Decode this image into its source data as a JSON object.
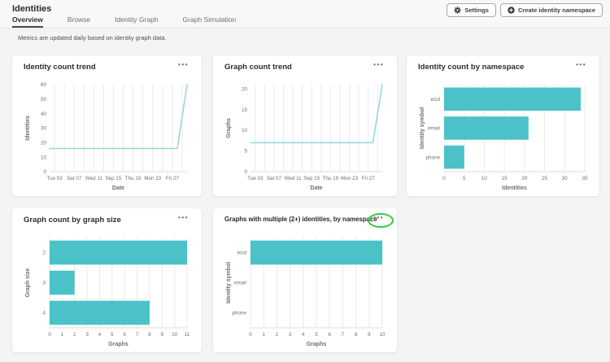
{
  "page": {
    "title": "Identities",
    "notice": "Metrics are updated daily based on identity graph data."
  },
  "header": {
    "settings_label": "Settings",
    "create_label": "Create identity namespace"
  },
  "tabs": [
    {
      "label": "Overview",
      "active": true
    },
    {
      "label": "Browse",
      "active": false
    },
    {
      "label": "Identity Graph",
      "active": false
    },
    {
      "label": "Graph Simulation",
      "active": false
    }
  ],
  "icons": {
    "settings": "gear",
    "create": "plus-circle",
    "more": "•••"
  },
  "colors": {
    "bar_teal": "#4bc2c8",
    "line_teal": "#8fd7dc",
    "grid": "#ebebeb",
    "axis_line": "#dcdcdc",
    "highlight_green": "#2ecc40"
  },
  "chart_data": [
    {
      "type": "line",
      "title": "Identity count trend",
      "xlabel": "Date",
      "ylabel": "Identities",
      "ylim": [
        0,
        60
      ],
      "yticks": [
        0,
        10,
        20,
        30,
        40,
        50,
        60
      ],
      "xlim": [
        0,
        28
      ],
      "xticks": [
        {
          "pos": 1,
          "label": "Tue 03"
        },
        {
          "pos": 5,
          "label": "Sat 07"
        },
        {
          "pos": 9,
          "label": "Wed 11"
        },
        {
          "pos": 13,
          "label": "Sep 15"
        },
        {
          "pos": 17,
          "label": "Thu 19"
        },
        {
          "pos": 21,
          "label": "Mon 23"
        },
        {
          "pos": 25,
          "label": "Fri 27"
        }
      ],
      "gridlines": [
        1,
        3,
        5,
        7,
        9,
        11,
        13,
        15,
        17,
        19,
        21,
        23,
        25,
        27
      ],
      "points": [
        [
          0,
          16
        ],
        [
          26,
          16
        ],
        [
          28,
          60
        ]
      ],
      "color": "#8fd7dc"
    },
    {
      "type": "line",
      "title": "Graph count trend",
      "xlabel": "Date",
      "ylabel": "Graphs",
      "ylim": [
        0,
        21
      ],
      "yticks": [
        0,
        5,
        10,
        15,
        20
      ],
      "xlim": [
        0,
        28
      ],
      "xticks": [
        {
          "pos": 1,
          "label": "Tue 03"
        },
        {
          "pos": 5,
          "label": "Sat 07"
        },
        {
          "pos": 9,
          "label": "Wed 11"
        },
        {
          "pos": 13,
          "label": "Sep 15"
        },
        {
          "pos": 17,
          "label": "Thu 19"
        },
        {
          "pos": 21,
          "label": "Mon 23"
        },
        {
          "pos": 25,
          "label": "Fri 27"
        }
      ],
      "gridlines": [
        1,
        3,
        5,
        7,
        9,
        11,
        13,
        15,
        17,
        19,
        21,
        23,
        25,
        27
      ],
      "points": [
        [
          0,
          7
        ],
        [
          26,
          7
        ],
        [
          28,
          21
        ]
      ],
      "color": "#8fd7dc"
    },
    {
      "type": "bar",
      "title": "Identity count by namespace",
      "xlabel": "Identities",
      "ylabel": "Identity symbol",
      "categories": [
        "ecid",
        "email",
        "phone"
      ],
      "values": [
        34,
        21,
        5
      ],
      "xlim": [
        0,
        35
      ],
      "xticks": [
        0,
        5,
        10,
        15,
        20,
        25,
        30,
        35
      ],
      "color": "#4bc2c8"
    },
    {
      "type": "bar",
      "title": "Graph count by graph size",
      "xlabel": "Graphs",
      "ylabel": "Graph size",
      "categories": [
        "2",
        "3",
        "4"
      ],
      "values": [
        11,
        2,
        8
      ],
      "xlim": [
        0,
        11
      ],
      "xticks": [
        0,
        1,
        2,
        3,
        4,
        5,
        6,
        7,
        8,
        9,
        10,
        11
      ],
      "color": "#4bc2c8"
    },
    {
      "type": "bar",
      "title": "Graphs with multiple (2+) identities, by namespace",
      "xlabel": "Graphs",
      "ylabel": "Identity symbol",
      "categories": [
        "ecid",
        "email",
        "phone"
      ],
      "values": [
        10,
        0,
        0
      ],
      "xlim": [
        0,
        10
      ],
      "xticks": [
        0,
        1,
        2,
        3,
        4,
        5,
        6,
        7,
        8,
        9,
        10
      ],
      "color": "#4bc2c8",
      "menu_highlighted": true
    }
  ]
}
